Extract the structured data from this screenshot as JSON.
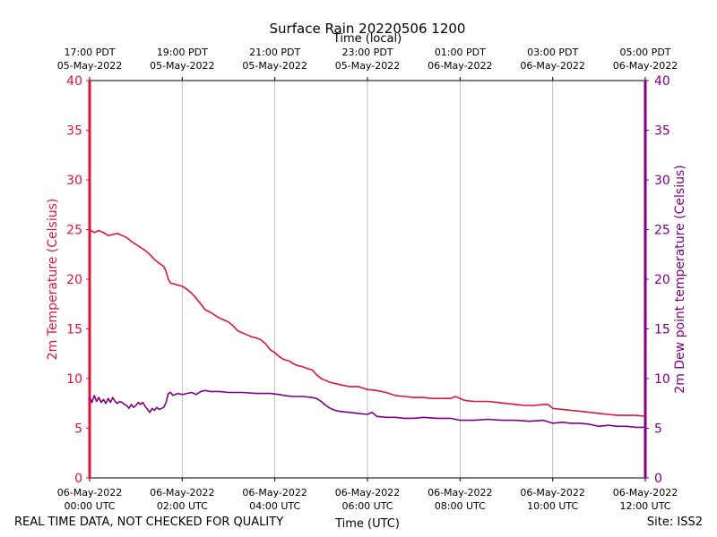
{
  "chart_data": {
    "type": "line",
    "title": "Surface Rain 20220506 1200",
    "xlabel_bottom": "Time (UTC)",
    "xlabel_top": "Time (local)",
    "ylabel_left": "2m Temperature (Celsius)",
    "ylabel_right": "2m Dew point temperature (Celsius)",
    "x_unit": "hours since 06-May-2022 00:00 UTC",
    "xlim": [
      0,
      12
    ],
    "ylim": [
      0,
      40
    ],
    "yticks": [
      "0",
      "5",
      "10",
      "15",
      "20",
      "25",
      "30",
      "35",
      "40"
    ],
    "xticks_bottom": [
      {
        "x": 0,
        "line1": "06-May-2022",
        "line2": "00:00 UTC"
      },
      {
        "x": 2,
        "line1": "06-May-2022",
        "line2": "02:00 UTC"
      },
      {
        "x": 4,
        "line1": "06-May-2022",
        "line2": "04:00 UTC"
      },
      {
        "x": 6,
        "line1": "06-May-2022",
        "line2": "06:00 UTC"
      },
      {
        "x": 8,
        "line1": "06-May-2022",
        "line2": "08:00 UTC"
      },
      {
        "x": 10,
        "line1": "06-May-2022",
        "line2": "10:00 UTC"
      },
      {
        "x": 12,
        "line1": "06-May-2022",
        "line2": "12:00 UTC"
      }
    ],
    "xticks_top": [
      {
        "x": 0,
        "line1": "17:00 PDT",
        "line2": "05-May-2022"
      },
      {
        "x": 2,
        "line1": "19:00 PDT",
        "line2": "05-May-2022"
      },
      {
        "x": 4,
        "line1": "21:00 PDT",
        "line2": "05-May-2022"
      },
      {
        "x": 6,
        "line1": "23:00 PDT",
        "line2": "05-May-2022"
      },
      {
        "x": 8,
        "line1": "01:00 PDT",
        "line2": "06-May-2022"
      },
      {
        "x": 10,
        "line1": "03:00 PDT",
        "line2": "06-May-2022"
      },
      {
        "x": 12,
        "line1": "05:00 PDT",
        "line2": "06-May-2022"
      }
    ],
    "series": [
      {
        "name": "2m Temperature",
        "axis": "left",
        "color": "#dc143c",
        "points": [
          [
            0.0,
            25.0
          ],
          [
            0.1,
            24.7
          ],
          [
            0.2,
            24.9
          ],
          [
            0.3,
            24.7
          ],
          [
            0.4,
            24.4
          ],
          [
            0.5,
            24.5
          ],
          [
            0.6,
            24.6
          ],
          [
            0.7,
            24.4
          ],
          [
            0.8,
            24.2
          ],
          [
            0.9,
            23.8
          ],
          [
            1.0,
            23.5
          ],
          [
            1.1,
            23.2
          ],
          [
            1.2,
            22.9
          ],
          [
            1.3,
            22.5
          ],
          [
            1.4,
            22.0
          ],
          [
            1.5,
            21.6
          ],
          [
            1.6,
            21.3
          ],
          [
            1.65,
            20.8
          ],
          [
            1.7,
            20.0
          ],
          [
            1.75,
            19.6
          ],
          [
            1.85,
            19.5
          ],
          [
            2.0,
            19.3
          ],
          [
            2.1,
            19.0
          ],
          [
            2.2,
            18.6
          ],
          [
            2.3,
            18.1
          ],
          [
            2.4,
            17.5
          ],
          [
            2.5,
            16.9
          ],
          [
            2.6,
            16.7
          ],
          [
            2.7,
            16.4
          ],
          [
            2.8,
            16.1
          ],
          [
            2.9,
            15.9
          ],
          [
            3.0,
            15.7
          ],
          [
            3.1,
            15.3
          ],
          [
            3.2,
            14.8
          ],
          [
            3.3,
            14.6
          ],
          [
            3.4,
            14.4
          ],
          [
            3.5,
            14.2
          ],
          [
            3.6,
            14.1
          ],
          [
            3.7,
            13.9
          ],
          [
            3.8,
            13.5
          ],
          [
            3.9,
            12.9
          ],
          [
            4.0,
            12.6
          ],
          [
            4.1,
            12.2
          ],
          [
            4.2,
            11.9
          ],
          [
            4.3,
            11.8
          ],
          [
            4.4,
            11.5
          ],
          [
            4.5,
            11.3
          ],
          [
            4.6,
            11.2
          ],
          [
            4.7,
            11.0
          ],
          [
            4.8,
            10.9
          ],
          [
            4.9,
            10.4
          ],
          [
            5.0,
            10.0
          ],
          [
            5.1,
            9.8
          ],
          [
            5.2,
            9.6
          ],
          [
            5.4,
            9.4
          ],
          [
            5.6,
            9.2
          ],
          [
            5.8,
            9.2
          ],
          [
            6.0,
            8.9
          ],
          [
            6.2,
            8.8
          ],
          [
            6.4,
            8.6
          ],
          [
            6.6,
            8.3
          ],
          [
            6.8,
            8.2
          ],
          [
            7.0,
            8.1
          ],
          [
            7.2,
            8.1
          ],
          [
            7.4,
            8.0
          ],
          [
            7.6,
            8.0
          ],
          [
            7.8,
            8.0
          ],
          [
            7.9,
            8.2
          ],
          [
            8.0,
            8.0
          ],
          [
            8.1,
            7.8
          ],
          [
            8.3,
            7.7
          ],
          [
            8.6,
            7.7
          ],
          [
            8.8,
            7.6
          ],
          [
            9.0,
            7.5
          ],
          [
            9.2,
            7.4
          ],
          [
            9.4,
            7.3
          ],
          [
            9.6,
            7.3
          ],
          [
            9.8,
            7.4
          ],
          [
            9.9,
            7.4
          ],
          [
            10.0,
            7.0
          ],
          [
            10.2,
            6.9
          ],
          [
            10.4,
            6.8
          ],
          [
            10.6,
            6.7
          ],
          [
            10.8,
            6.6
          ],
          [
            11.0,
            6.5
          ],
          [
            11.2,
            6.4
          ],
          [
            11.4,
            6.3
          ],
          [
            11.6,
            6.3
          ],
          [
            11.8,
            6.3
          ],
          [
            12.0,
            6.2
          ]
        ]
      },
      {
        "name": "2m Dew point temperature",
        "axis": "right",
        "color": "#800080",
        "points": [
          [
            0.0,
            8.1
          ],
          [
            0.05,
            7.6
          ],
          [
            0.1,
            8.3
          ],
          [
            0.15,
            7.7
          ],
          [
            0.2,
            8.1
          ],
          [
            0.25,
            7.6
          ],
          [
            0.3,
            7.9
          ],
          [
            0.35,
            7.5
          ],
          [
            0.4,
            8.0
          ],
          [
            0.45,
            7.6
          ],
          [
            0.5,
            8.1
          ],
          [
            0.55,
            7.7
          ],
          [
            0.6,
            7.5
          ],
          [
            0.65,
            7.7
          ],
          [
            0.7,
            7.6
          ],
          [
            0.75,
            7.4
          ],
          [
            0.8,
            7.3
          ],
          [
            0.85,
            7.0
          ],
          [
            0.9,
            7.4
          ],
          [
            0.95,
            7.1
          ],
          [
            1.0,
            7.3
          ],
          [
            1.05,
            7.6
          ],
          [
            1.1,
            7.4
          ],
          [
            1.15,
            7.6
          ],
          [
            1.2,
            7.2
          ],
          [
            1.25,
            6.9
          ],
          [
            1.3,
            6.6
          ],
          [
            1.35,
            7.0
          ],
          [
            1.4,
            6.8
          ],
          [
            1.45,
            7.1
          ],
          [
            1.5,
            6.9
          ],
          [
            1.55,
            7.0
          ],
          [
            1.6,
            7.1
          ],
          [
            1.65,
            7.6
          ],
          [
            1.7,
            8.5
          ],
          [
            1.75,
            8.6
          ],
          [
            1.8,
            8.3
          ],
          [
            1.9,
            8.5
          ],
          [
            2.0,
            8.4
          ],
          [
            2.1,
            8.5
          ],
          [
            2.2,
            8.6
          ],
          [
            2.3,
            8.4
          ],
          [
            2.4,
            8.7
          ],
          [
            2.5,
            8.8
          ],
          [
            2.6,
            8.7
          ],
          [
            2.8,
            8.7
          ],
          [
            3.0,
            8.6
          ],
          [
            3.3,
            8.6
          ],
          [
            3.6,
            8.5
          ],
          [
            3.9,
            8.5
          ],
          [
            4.1,
            8.4
          ],
          [
            4.2,
            8.3
          ],
          [
            4.4,
            8.2
          ],
          [
            4.6,
            8.2
          ],
          [
            4.8,
            8.1
          ],
          [
            4.9,
            8.0
          ],
          [
            5.0,
            7.7
          ],
          [
            5.1,
            7.3
          ],
          [
            5.2,
            7.0
          ],
          [
            5.3,
            6.8
          ],
          [
            5.4,
            6.7
          ],
          [
            5.6,
            6.6
          ],
          [
            5.8,
            6.5
          ],
          [
            6.0,
            6.4
          ],
          [
            6.1,
            6.6
          ],
          [
            6.2,
            6.2
          ],
          [
            6.4,
            6.1
          ],
          [
            6.6,
            6.1
          ],
          [
            6.8,
            6.0
          ],
          [
            7.0,
            6.0
          ],
          [
            7.2,
            6.1
          ],
          [
            7.5,
            6.0
          ],
          [
            7.8,
            6.0
          ],
          [
            8.0,
            5.8
          ],
          [
            8.3,
            5.8
          ],
          [
            8.6,
            5.9
          ],
          [
            8.9,
            5.8
          ],
          [
            9.2,
            5.8
          ],
          [
            9.5,
            5.7
          ],
          [
            9.8,
            5.8
          ],
          [
            10.0,
            5.5
          ],
          [
            10.2,
            5.6
          ],
          [
            10.4,
            5.5
          ],
          [
            10.6,
            5.5
          ],
          [
            10.8,
            5.4
          ],
          [
            11.0,
            5.2
          ],
          [
            11.2,
            5.3
          ],
          [
            11.4,
            5.2
          ],
          [
            11.6,
            5.2
          ],
          [
            11.8,
            5.1
          ],
          [
            12.0,
            5.1
          ]
        ]
      }
    ]
  },
  "footer": {
    "left": "REAL TIME DATA, NOT CHECKED FOR QUALITY",
    "right": "Site: ISS2"
  },
  "colors": {
    "temperature": "#dc143c",
    "dewpoint": "#800080",
    "grid": "#b0b0b0"
  }
}
